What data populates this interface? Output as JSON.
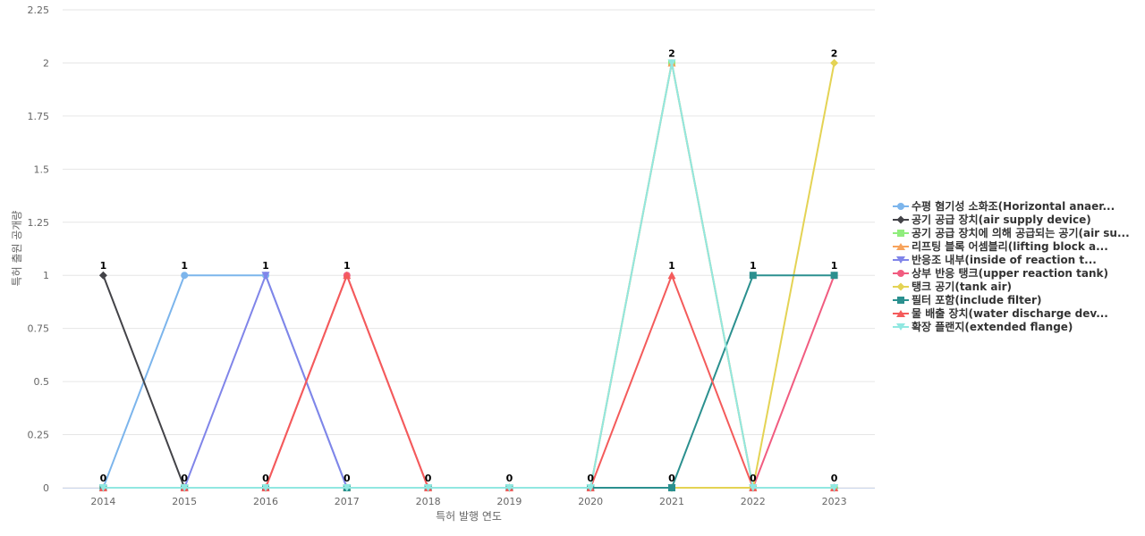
{
  "chart_data": {
    "type": "line",
    "title": "",
    "xlabel": "특허 발행 연도",
    "ylabel": "특허 출원 공개량",
    "categories": [
      "2014",
      "2015",
      "2016",
      "2017",
      "2018",
      "2019",
      "2020",
      "2021",
      "2022",
      "2023"
    ],
    "yticks": [
      "0",
      "0.25",
      "0.5",
      "0.75",
      "1",
      "1.25",
      "1.5",
      "1.75",
      "2",
      "2.25"
    ],
    "ylim": [
      0,
      2.25
    ],
    "grid": true,
    "legend_position": "right",
    "series": [
      {
        "name": "수평 혐기성 소화조(Horizontal anaer...",
        "color": "#7cb5ec",
        "marker": "circle",
        "values": [
          0,
          1,
          1,
          0,
          0,
          0,
          0,
          0,
          0,
          0
        ]
      },
      {
        "name": "공기 공급 장치(air supply device)",
        "color": "#434348",
        "marker": "diamond",
        "values": [
          1,
          0,
          0,
          0,
          0,
          0,
          0,
          0,
          0,
          0
        ]
      },
      {
        "name": "공기 공급 장치에 의해 공급되는 공기(air su...",
        "color": "#90ed7d",
        "marker": "square",
        "values": [
          0,
          0,
          0,
          0,
          0,
          0,
          0,
          2,
          0,
          0
        ]
      },
      {
        "name": "리프팅 블록 어셈블리(lifting block a...",
        "color": "#f7a35c",
        "marker": "triangle",
        "values": [
          0,
          0,
          0,
          0,
          0,
          0,
          0,
          2,
          0,
          0
        ]
      },
      {
        "name": "반응조 내부(inside of reaction t...",
        "color": "#8085e9",
        "marker": "triangle-down",
        "values": [
          0,
          0,
          1,
          0,
          0,
          0,
          0,
          0,
          0,
          0
        ]
      },
      {
        "name": "상부 반응 탱크(upper reaction tank)",
        "color": "#f15c80",
        "marker": "circle",
        "values": [
          0,
          0,
          0,
          1,
          0,
          0,
          0,
          0,
          0,
          1
        ]
      },
      {
        "name": "탱크 공기(tank air)",
        "color": "#e4d354",
        "marker": "diamond",
        "values": [
          0,
          0,
          0,
          0,
          0,
          0,
          0,
          0,
          0,
          2
        ]
      },
      {
        "name": "필터 포함(include filter)",
        "color": "#2b908f",
        "marker": "square",
        "values": [
          0,
          0,
          0,
          0,
          0,
          0,
          0,
          0,
          1,
          1
        ]
      },
      {
        "name": "물 배출 장치(water discharge dev...",
        "color": "#f45b5b",
        "marker": "triangle",
        "values": [
          0,
          0,
          0,
          1,
          0,
          0,
          0,
          1,
          0,
          0
        ]
      },
      {
        "name": "확장 플랜지(extended flange)",
        "color": "#91e8e1",
        "marker": "triangle-down",
        "values": [
          0,
          0,
          0,
          0,
          0,
          0,
          0,
          2,
          0,
          0
        ]
      }
    ],
    "data_labels": [
      {
        "category": "2014",
        "values": [
          "0",
          "1"
        ]
      },
      {
        "category": "2015",
        "values": [
          "0",
          "1"
        ]
      },
      {
        "category": "2016",
        "values": [
          "0",
          "1"
        ]
      },
      {
        "category": "2017",
        "values": [
          "0",
          "1"
        ]
      },
      {
        "category": "2018",
        "values": [
          "0"
        ]
      },
      {
        "category": "2019",
        "values": [
          "0"
        ]
      },
      {
        "category": "2020",
        "values": [
          "0"
        ]
      },
      {
        "category": "2021",
        "values": [
          "0",
          "1",
          "2"
        ]
      },
      {
        "category": "2022",
        "values": [
          "0",
          "1"
        ]
      },
      {
        "category": "2023",
        "values": [
          "0",
          "1",
          "2"
        ]
      }
    ]
  }
}
